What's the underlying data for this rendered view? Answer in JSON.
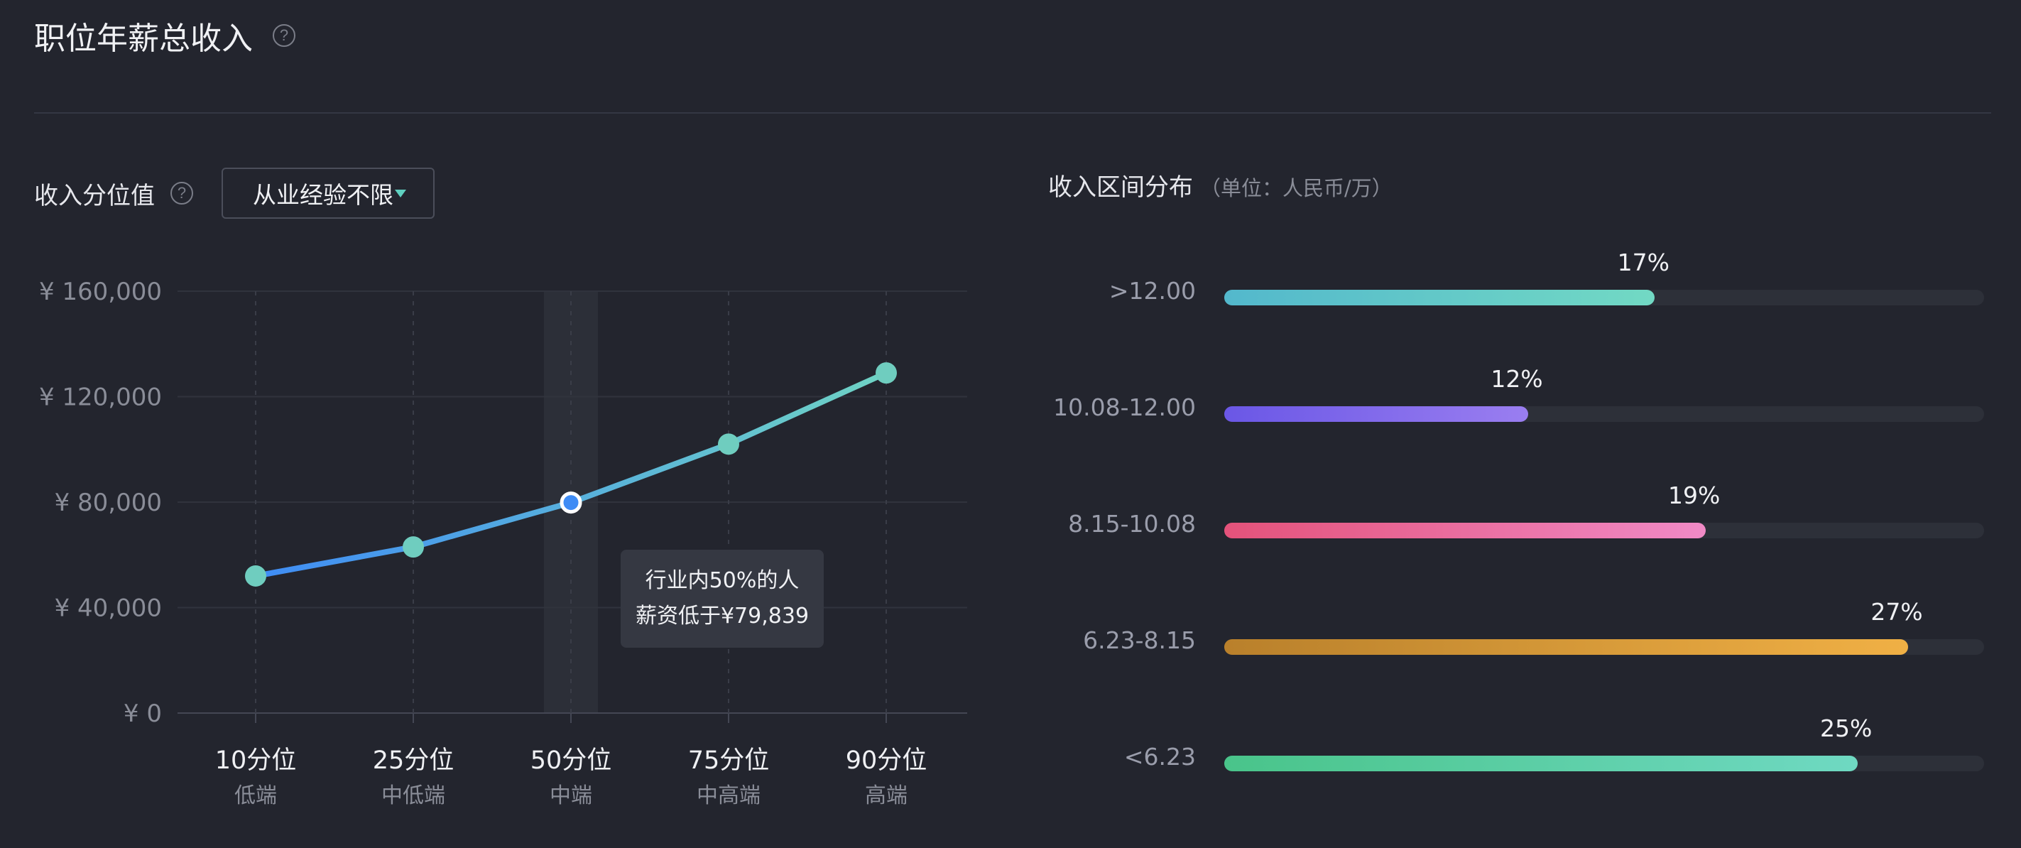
{
  "header": {
    "title": "职位年薪总收入",
    "help": "?"
  },
  "left": {
    "label": "收入分位值",
    "help": "?",
    "dropdown_value": "从业经验不限"
  },
  "right": {
    "label": "收入区间分布",
    "unit": "（单位：人民币/万）"
  },
  "tooltip": {
    "line1": "行业内50%的人",
    "line2": "薪资低于¥79,839"
  },
  "chart_data": [
    {
      "type": "line",
      "categories": [
        "10分位",
        "25分位",
        "50分位",
        "75分位",
        "90分位"
      ],
      "sub_labels": [
        "低端",
        "中低端",
        "中端",
        "中高端",
        "高端"
      ],
      "values": [
        52000,
        63000,
        79839,
        102000,
        129000
      ],
      "ylim": [
        0,
        160000
      ],
      "yticks": [
        0,
        40000,
        80000,
        120000,
        160000
      ],
      "ytick_labels": [
        "¥ 0",
        "¥ 40,000",
        "¥ 80,000",
        "¥ 120,000",
        "¥ 160,000"
      ],
      "highlight_index": 2,
      "grid": true,
      "colors": {
        "start": "#3f8cf5",
        "end": "#6fd3c4",
        "marker": "#6fcdbf"
      }
    },
    {
      "type": "bar",
      "orientation": "horizontal",
      "categories": [
        ">12.00",
        "10.08-12.00",
        "8.15-10.08",
        "6.23-8.15",
        "<6.23"
      ],
      "values": [
        17,
        12,
        19,
        27,
        25
      ],
      "value_labels": [
        "17%",
        "12%",
        "19%",
        "27%",
        "25%"
      ],
      "xlim": [
        0,
        30
      ],
      "colors": [
        [
          "#53b8cc",
          "#72d9c4"
        ],
        [
          "#6a57e6",
          "#9a7ef0"
        ],
        [
          "#e4527a",
          "#f08ac6"
        ],
        [
          "#b9802b",
          "#f0b045"
        ],
        [
          "#49c48a",
          "#6fd9c2"
        ]
      ]
    }
  ]
}
